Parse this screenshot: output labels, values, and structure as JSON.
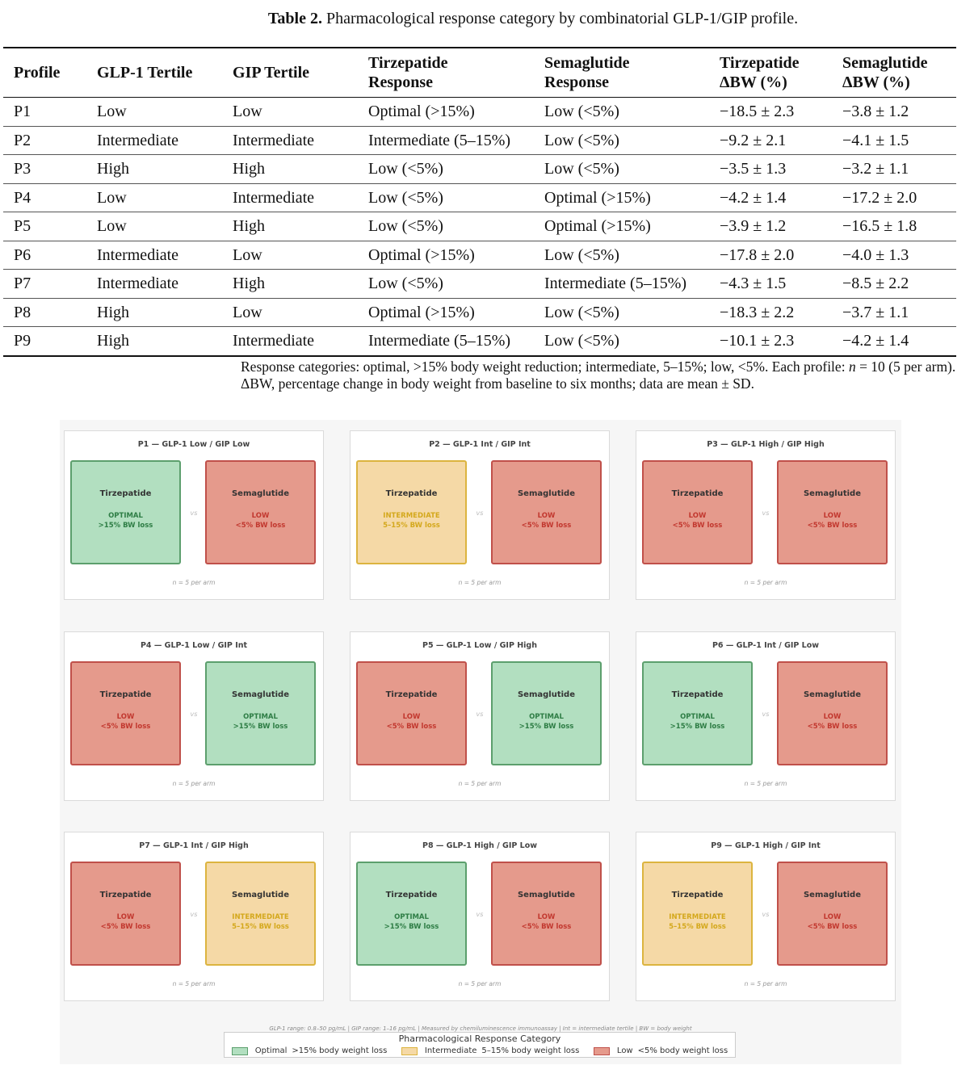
{
  "caption": {
    "label": "Table 2.",
    "text": "Pharmacological response category by combinatorial GLP-1/GIP profile."
  },
  "table": {
    "headers": [
      [
        "Profile",
        ""
      ],
      [
        "GLP-1 Tertile",
        ""
      ],
      [
        "GIP Tertile",
        ""
      ],
      [
        "Tirzepatide",
        "Response"
      ],
      [
        "Semaglutide",
        "Response"
      ],
      [
        "Tirzepatide",
        "ΔBW (%)"
      ],
      [
        "Semaglutide",
        "ΔBW (%)"
      ]
    ],
    "rows": [
      [
        "P1",
        "Low",
        "Low",
        "Optimal (>15%)",
        "Low (<5%)",
        "−18.5 ± 2.3",
        "−3.8 ± 1.2"
      ],
      [
        "P2",
        "Intermediate",
        "Intermediate",
        "Intermediate (5–15%)",
        "Low (<5%)",
        "−9.2 ± 2.1",
        "−4.1 ± 1.5"
      ],
      [
        "P3",
        "High",
        "High",
        "Low (<5%)",
        "Low (<5%)",
        "−3.5 ± 1.3",
        "−3.2 ± 1.1"
      ],
      [
        "P4",
        "Low",
        "Intermediate",
        "Low (<5%)",
        "Optimal (>15%)",
        "−4.2 ± 1.4",
        "−17.2 ± 2.0"
      ],
      [
        "P5",
        "Low",
        "High",
        "Low (<5%)",
        "Optimal (>15%)",
        "−3.9 ± 1.2",
        "−16.5 ± 1.8"
      ],
      [
        "P6",
        "Intermediate",
        "Low",
        "Optimal (>15%)",
        "Low (<5%)",
        "−17.8 ± 2.0",
        "−4.0 ± 1.3"
      ],
      [
        "P7",
        "Intermediate",
        "High",
        "Low (<5%)",
        "Intermediate (5–15%)",
        "−4.3 ± 1.5",
        "−8.5 ± 2.2"
      ],
      [
        "P8",
        "High",
        "Low",
        "Optimal (>15%)",
        "Low (<5%)",
        "−18.3 ± 2.2",
        "−3.7 ± 1.1"
      ],
      [
        "P9",
        "High",
        "Intermediate",
        "Intermediate (5–15%)",
        "Low (<5%)",
        "−10.1 ± 2.3",
        "−4.2 ± 1.4"
      ]
    ]
  },
  "note": {
    "part1": "Response categories: optimal, >15% body weight reduction; intermediate, 5–15%; low, <5%. Each profile: ",
    "n_var": "n",
    "part2": " = 10 (5 per arm). ΔBW, percentage change in body weight from baseline to six months; data are mean ± SD."
  },
  "figure": {
    "vs_label": "vs",
    "n_label": "n = 5 per arm",
    "categories": {
      "optimal": {
        "label": "OPTIMAL",
        "desc": ">15% BW loss",
        "fill": "#b2dfc0",
        "border": "#5c9f6d"
      },
      "intermediate": {
        "label": "INTERMEDIATE",
        "desc": "5–15% BW loss",
        "fill": "#f5d9a6",
        "border": "#dcb43f"
      },
      "low": {
        "label": "LOW",
        "desc": "<5% BW loss",
        "fill": "#e59a8c",
        "border": "#c0504a"
      }
    },
    "panels": [
      {
        "title": "P1 — GLP-1 Low / GIP Low",
        "tirz": "optimal",
        "sema": "low"
      },
      {
        "title": "P2 — GLP-1 Int / GIP Int",
        "tirz": "intermediate",
        "sema": "low"
      },
      {
        "title": "P3 — GLP-1 High / GIP High",
        "tirz": "low",
        "sema": "low"
      },
      {
        "title": "P4 — GLP-1 Low / GIP Int",
        "tirz": "low",
        "sema": "optimal"
      },
      {
        "title": "P5 — GLP-1 Low / GIP High",
        "tirz": "low",
        "sema": "optimal"
      },
      {
        "title": "P6 — GLP-1 Int / GIP Low",
        "tirz": "optimal",
        "sema": "low"
      },
      {
        "title": "P7 — GLP-1 Int / GIP High",
        "tirz": "low",
        "sema": "intermediate"
      },
      {
        "title": "P8 — GLP-1 High / GIP Low",
        "tirz": "optimal",
        "sema": "low"
      },
      {
        "title": "P9 — GLP-1 High / GIP Int",
        "tirz": "intermediate",
        "sema": "low"
      }
    ],
    "drug_left": "Tirzepatide",
    "drug_right": "Semaglutide",
    "footnote": "GLP-1 range: 0.8–50 pg/mL  |  GIP range: 1–16 pg/mL  |  Measured by chemiluminescence immunoassay  |  Int = intermediate tertile  |  BW = body weight",
    "legend": {
      "title": "Pharmacological Response Category",
      "items": [
        {
          "key": "optimal",
          "name": "Optimal",
          "desc": ">15% body weight loss"
        },
        {
          "key": "intermediate",
          "name": "Intermediate",
          "desc": "5–15% body weight loss"
        },
        {
          "key": "low",
          "name": "Low",
          "desc": "<5% body weight loss"
        }
      ]
    }
  }
}
